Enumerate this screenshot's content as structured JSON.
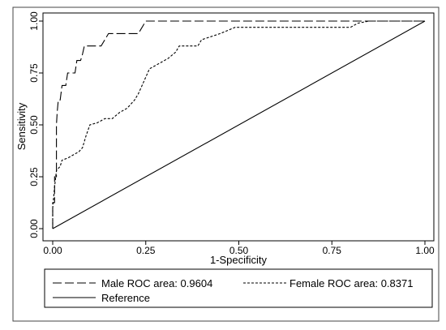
{
  "chart_data": {
    "type": "line",
    "xlabel": "1-Specificity",
    "ylabel": "Sensitivity",
    "xlim": [
      0,
      1
    ],
    "ylim": [
      0,
      1
    ],
    "x_ticks": [
      "0.00",
      "0.25",
      "0.50",
      "0.75",
      "1.00"
    ],
    "y_ticks": [
      "0.00",
      "0.25",
      "0.50",
      "0.75",
      "1.00"
    ],
    "grid": false,
    "legend_position": "bottom",
    "legend": [
      {
        "key": "male",
        "label": "Male ROC area: 0.9604"
      },
      {
        "key": "female",
        "label": "Female ROC area: 0.8371"
      },
      {
        "key": "reference",
        "label": "Reference"
      }
    ],
    "series": [
      {
        "key": "male",
        "name": "Male ROC area: 0.9604",
        "style": "long-dash",
        "x": [
          0,
          0,
          0.005,
          0.005,
          0.01,
          0.01,
          0.012,
          0.015,
          0.02,
          0.025,
          0.035,
          0.04,
          0.06,
          0.065,
          0.07,
          0.075,
          0.08,
          0.085,
          0.09,
          0.1,
          0.13,
          0.14,
          0.15,
          0.2,
          0.23,
          0.25,
          0.5,
          0.83,
          0.85,
          1.0
        ],
        "y": [
          0,
          0.125,
          0.125,
          0.25,
          0.25,
          0.5,
          0.56,
          0.62,
          0.62,
          0.69,
          0.69,
          0.75,
          0.75,
          0.81,
          0.81,
          0.81,
          0.84,
          0.88,
          0.88,
          0.88,
          0.88,
          0.91,
          0.94,
          0.94,
          0.94,
          1.0,
          1.0,
          1.0,
          1.0,
          1.0
        ]
      },
      {
        "key": "female",
        "name": "Female ROC area: 0.8371",
        "style": "short-dash",
        "x": [
          0,
          0,
          0.005,
          0.01,
          0.02,
          0.025,
          0.04,
          0.06,
          0.07,
          0.08,
          0.09,
          0.1,
          0.12,
          0.14,
          0.16,
          0.18,
          0.2,
          0.22,
          0.23,
          0.24,
          0.25,
          0.26,
          0.28,
          0.31,
          0.33,
          0.34,
          0.37,
          0.39,
          0.4,
          0.45,
          0.49,
          0.52,
          0.6,
          0.8,
          0.82,
          0.85,
          0.9,
          1.0
        ],
        "y": [
          0,
          0.1,
          0.2,
          0.28,
          0.3,
          0.33,
          0.34,
          0.36,
          0.37,
          0.39,
          0.45,
          0.5,
          0.51,
          0.53,
          0.53,
          0.56,
          0.58,
          0.62,
          0.65,
          0.69,
          0.73,
          0.77,
          0.79,
          0.82,
          0.85,
          0.88,
          0.88,
          0.88,
          0.91,
          0.94,
          0.97,
          0.97,
          0.97,
          0.97,
          0.99,
          1.0,
          1.0,
          1.0
        ]
      },
      {
        "key": "reference",
        "name": "Reference",
        "style": "solid",
        "x": [
          0,
          1
        ],
        "y": [
          0,
          1
        ]
      }
    ]
  }
}
